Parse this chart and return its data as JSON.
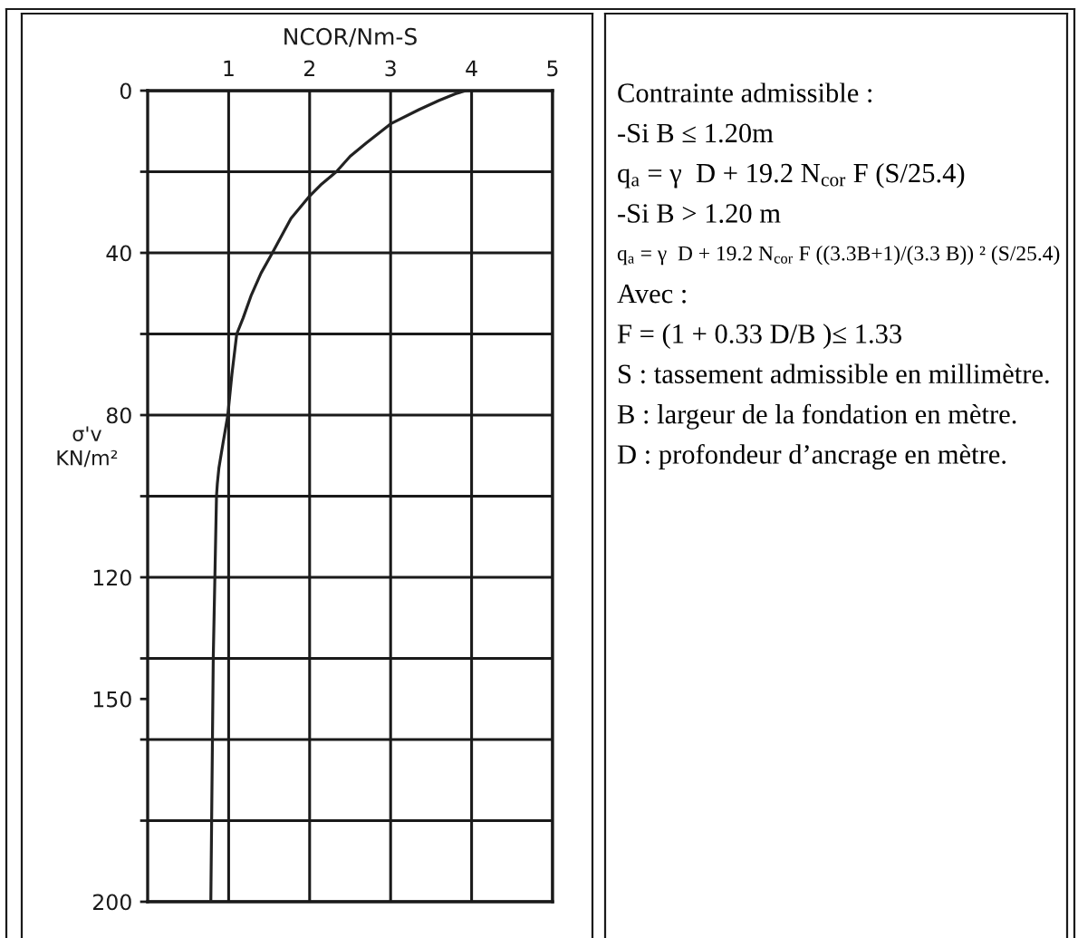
{
  "chart_data": {
    "type": "line",
    "xlabel": "NCOR/Nm-S",
    "ylabel": "σ'v\nKN/m²",
    "x": [
      3.93,
      3.8,
      3.6,
      3.35,
      3.0,
      2.7,
      2.5,
      2.33,
      2.15,
      2.0,
      1.77,
      1.54,
      1.4,
      1.28,
      1.18,
      1.1,
      1.04,
      0.99,
      0.93,
      0.88,
      0.86,
      0.85,
      0.83,
      0.81,
      0.8,
      0.79,
      0.78
    ],
    "series": [
      {
        "color": "#222222",
        "values": [
          0,
          0.8,
          2.4,
          4.7,
          8.2,
          12.9,
          16.2,
          20,
          23,
          26,
          31.5,
          40,
          45,
          50.4,
          56,
          60,
          70,
          80,
          87,
          93,
          97,
          100,
          120,
          140,
          160,
          180,
          200
        ]
      }
    ],
    "xlim": [
      0,
      5
    ],
    "xticks": [
      1,
      2,
      3,
      4,
      5
    ],
    "ylim": [
      200,
      0
    ],
    "yticks": [
      0,
      {
        "value": 20,
        "label": null
      },
      40,
      {
        "value": 60,
        "label": null
      },
      80,
      {
        "value": 100,
        "label": null
      },
      120,
      {
        "value": 140,
        "label": null
      },
      150,
      {
        "value": 160,
        "label": null
      },
      {
        "value": 180,
        "label": null
      },
      200
    ],
    "grid": true,
    "line_style": "solid",
    "annotations": [
      "Contrainte admissible :",
      "-Si B ≤ 1.20m",
      "q$_{a}$ = γ  D + 19.2 N$_{cor}$ F (S/25.4)",
      "-Si B > 1.20 m",
      "q$_{a}$ = γ  D + 19.2 N$_{cor}$ F ((3.3B+1)/(3.3 B)) ² (S/25.4)",
      "Avec :",
      "F = (1 + 0.33 D/B )≤ 1.33",
      "S : tassement admissible en millimètre.",
      "B : largeur de la fondation en mètre.",
      "D : profondeur d’ancrage en mètre."
    ]
  }
}
